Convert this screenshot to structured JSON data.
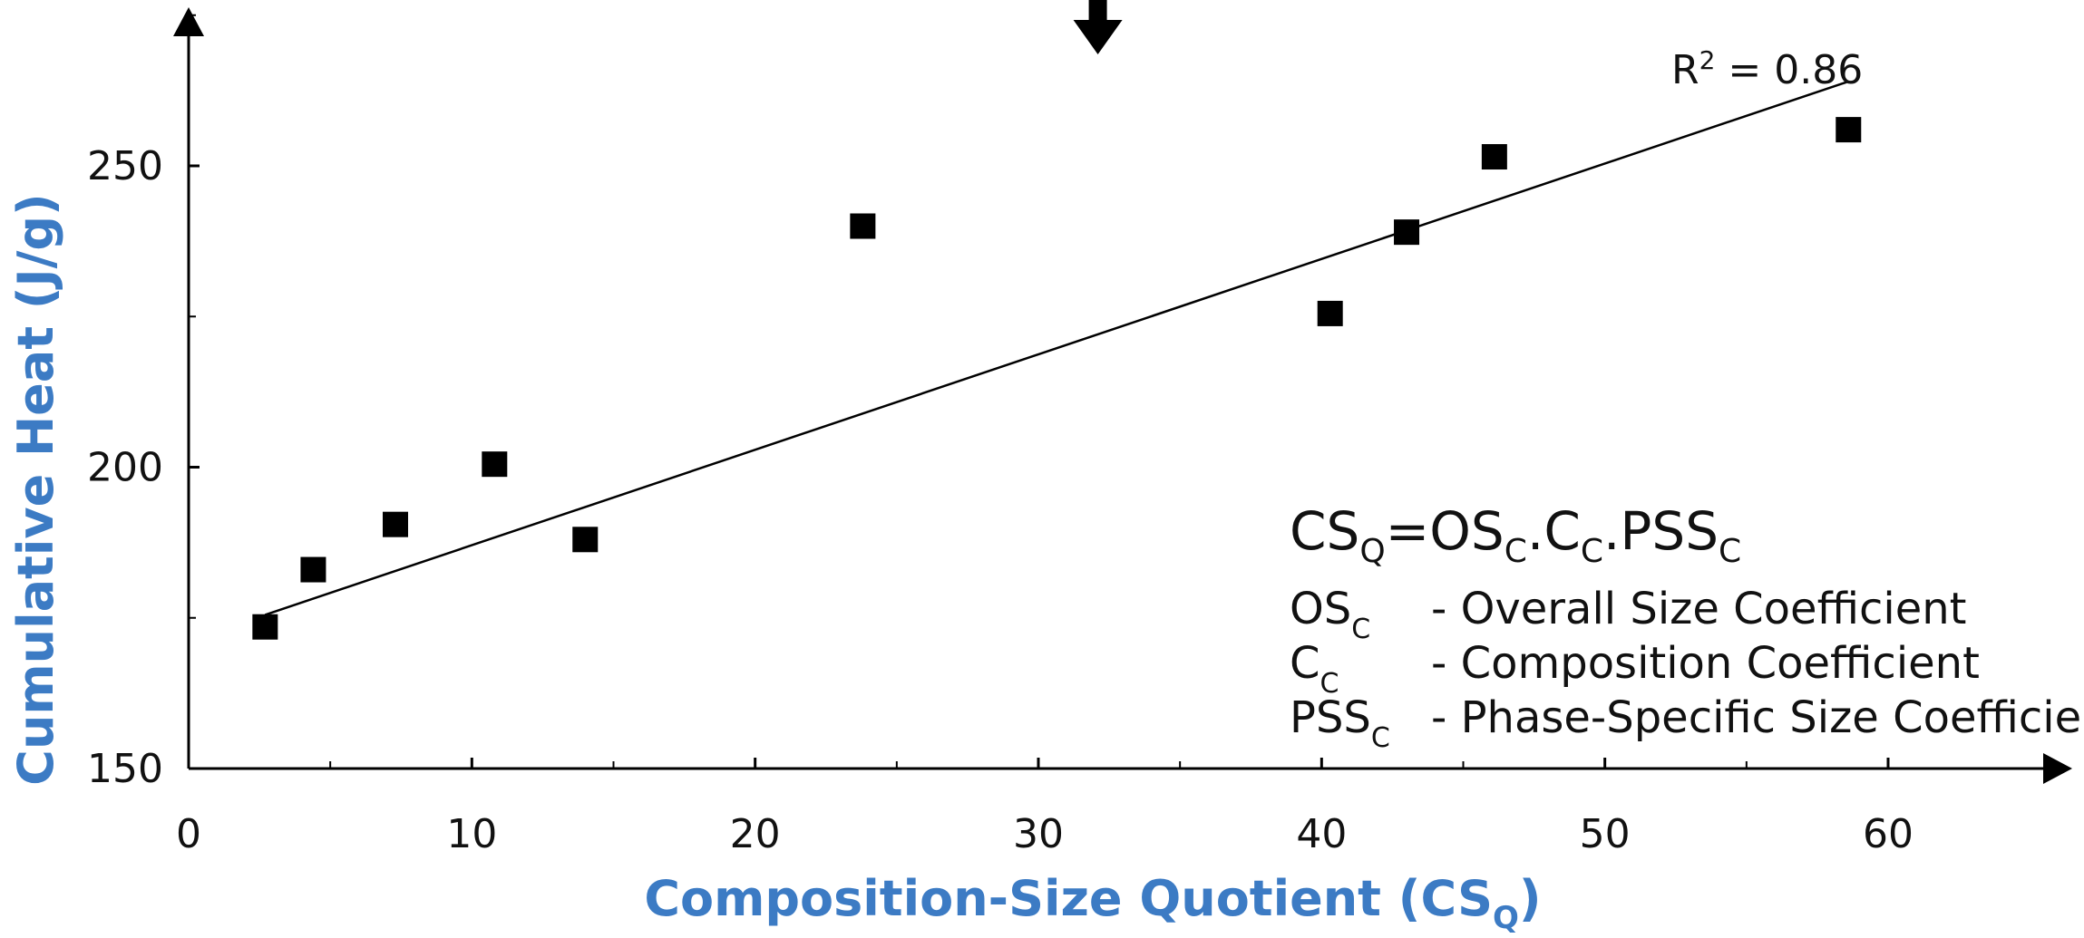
{
  "chart_data": {
    "type": "scatter",
    "title": "",
    "xlabel": {
      "text": "Composition-Size Quotient (CS",
      "sub": "Q",
      "close": ")"
    },
    "ylabel": "Cumulative Heat (J/g)",
    "xlim": [
      0,
      64
    ],
    "ylim": [
      150,
      275
    ],
    "x_ticks": [
      0,
      10,
      20,
      30,
      40,
      50,
      60
    ],
    "y_ticks": [
      150,
      200,
      250
    ],
    "grid": false,
    "points": [
      {
        "x": 2.7,
        "y": 173.5
      },
      {
        "x": 4.4,
        "y": 183.0
      },
      {
        "x": 7.3,
        "y": 190.5
      },
      {
        "x": 10.8,
        "y": 200.5
      },
      {
        "x": 14.0,
        "y": 188.0
      },
      {
        "x": 23.8,
        "y": 240.0
      },
      {
        "x": 40.3,
        "y": 225.5
      },
      {
        "x": 43.0,
        "y": 239.0
      },
      {
        "x": 46.1,
        "y": 251.5
      },
      {
        "x": 58.6,
        "y": 256.0
      }
    ],
    "fit_line": {
      "x": [
        2.7,
        58.6
      ],
      "y": [
        175.5,
        264.0
      ]
    },
    "r2_label": {
      "base": "R",
      "sup": "2",
      "rest": " = 0.86"
    },
    "marker_arrow_x": 32.1,
    "equation": {
      "lhs": {
        "base": "CS",
        "sub": "Q"
      },
      "rhs": [
        {
          "base": "OS",
          "sub": "C"
        },
        {
          "sep": "."
        },
        {
          "base": "C",
          "sub": "C"
        },
        {
          "sep": "."
        },
        {
          "base": "PSS",
          "sub": "C"
        }
      ],
      "definitions": [
        {
          "base": "OS",
          "sub": "C",
          "desc": "-  Overall Size Coefficient"
        },
        {
          "base": "C",
          "sub": "C",
          "desc": "-  Composition Coefficient"
        },
        {
          "base": "PSS",
          "sub": "C",
          "desc": "-  Phase-Specific Size Coefficient"
        }
      ]
    },
    "colors": {
      "axis_label": "#3c7bc4",
      "marker": "#000000",
      "line": "#000000"
    }
  }
}
